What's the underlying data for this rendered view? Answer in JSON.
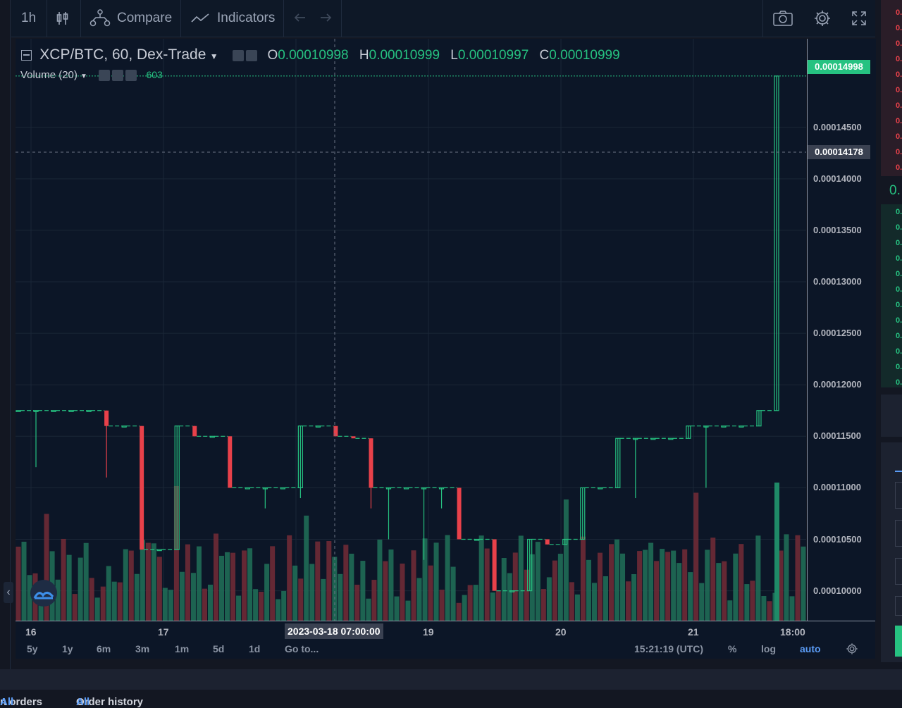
{
  "toolbar": {
    "interval": "1h",
    "compare_label": "Compare",
    "indicators_label": "Indicators"
  },
  "symbol": {
    "title": "XCP/BTC, 60, Dex-Trade",
    "open_label": "O",
    "open": "0.00010998",
    "high_label": "H",
    "high": "0.00010999",
    "low_label": "L",
    "low": "0.00010997",
    "close_label": "C",
    "close": "0.00010999"
  },
  "volume": {
    "label": "Volume (20)",
    "value": "603"
  },
  "price_scale": {
    "ticks": [
      "0.00014500",
      "0.00014000",
      "0.00013500",
      "0.00013000",
      "0.00012500",
      "0.00012000",
      "0.00011500",
      "0.00011000",
      "0.00010500",
      "0.00010000"
    ],
    "last_price_tag": "0.00014998",
    "crosshair_tag": "0.00014178"
  },
  "time_scale": {
    "ticks": [
      "16",
      "17",
      "19",
      "20",
      "21",
      "18:00"
    ],
    "crosshair_tag": "2023-03-18 07:00:00"
  },
  "ranges": [
    "5y",
    "1y",
    "6m",
    "3m",
    "1m",
    "5d",
    "1d"
  ],
  "goto_label": "Go to...",
  "clock": "15:21:19 (UTC)",
  "scale_options": {
    "percent": "%",
    "log": "log",
    "auto": "auto"
  },
  "footer": {
    "open_orders_text": "n orders",
    "open_orders_link": "All",
    "order_history_text": "Order history",
    "order_history_link": "All"
  },
  "right_panel": {
    "orderbook_cell": "0.",
    "mid_price": "0."
  },
  "colors": {
    "up": "#26c281",
    "down": "#e8414a",
    "bg": "#0c1627",
    "accent": "#5b9cf6"
  },
  "chart_data": {
    "type": "candlestick",
    "symbol": "XCP/BTC",
    "interval": "60",
    "exchange": "Dex-Trade",
    "ylim": [
      9.71e-05,
      0.0001536
    ],
    "price_ticks": [
      0.000145,
      0.00014,
      0.000135,
      0.00013,
      0.000125,
      0.00012,
      0.000115,
      0.00011,
      0.000105,
      0.0001
    ],
    "candles": [
      {
        "o": 0.0001175,
        "h": 0.0001175,
        "l": 0.0001175,
        "c": 0.0001175
      },
      {
        "o": 0.0001175,
        "h": 0.0001175,
        "l": 0.000112,
        "c": 0.0001175
      },
      {
        "o": 0.0001175,
        "h": 0.0001175,
        "l": 0.0001175,
        "c": 0.0001175
      },
      {
        "o": 0.0001175,
        "h": 0.0001175,
        "l": 0.0001175,
        "c": 0.0001175
      },
      {
        "o": 0.0001175,
        "h": 0.0001175,
        "l": 0.0001175,
        "c": 0.0001175
      },
      {
        "o": 0.0001175,
        "h": 0.0001175,
        "l": 0.000111,
        "c": 0.000116
      },
      {
        "o": 0.000116,
        "h": 0.000116,
        "l": 0.000116,
        "c": 0.000116
      },
      {
        "o": 0.000116,
        "h": 0.000116,
        "l": 0.000104,
        "c": 0.000104
      },
      {
        "o": 0.000104,
        "h": 0.000104,
        "l": 0.000104,
        "c": 0.000104
      },
      {
        "o": 0.000104,
        "h": 0.000116,
        "l": 0.000104,
        "c": 0.000116
      },
      {
        "o": 0.000116,
        "h": 0.000116,
        "l": 0.000115,
        "c": 0.000115
      },
      {
        "o": 0.000115,
        "h": 0.000115,
        "l": 0.000115,
        "c": 0.000115
      },
      {
        "o": 0.000115,
        "h": 0.000115,
        "l": 0.00011,
        "c": 0.00011
      },
      {
        "o": 0.00011,
        "h": 0.00011,
        "l": 0.00011,
        "c": 0.00011
      },
      {
        "o": 0.00011,
        "h": 0.00011,
        "l": 0.000108,
        "c": 0.00011
      },
      {
        "o": 0.00011,
        "h": 0.00011,
        "l": 0.00011,
        "c": 0.00011
      },
      {
        "o": 0.00011,
        "h": 0.000116,
        "l": 0.000109,
        "c": 0.000116
      },
      {
        "o": 0.000116,
        "h": 0.000116,
        "l": 0.000116,
        "c": 0.000116
      },
      {
        "o": 0.000116,
        "h": 0.000116,
        "l": 0.000115,
        "c": 0.000115
      },
      {
        "o": 0.000115,
        "h": 0.000115,
        "l": 0.000115,
        "c": 0.0001148
      },
      {
        "o": 0.0001148,
        "h": 0.0001148,
        "l": 0.000108,
        "c": 0.00011
      },
      {
        "o": 0.00011,
        "h": 0.00011,
        "l": 0.000105,
        "c": 0.00011
      },
      {
        "o": 0.00011,
        "h": 0.00011,
        "l": 0.00011,
        "c": 0.00011
      },
      {
        "o": 0.00011,
        "h": 0.00011,
        "l": 0.000103,
        "c": 0.00011
      },
      {
        "o": 0.00011,
        "h": 0.00011,
        "l": 0.000108,
        "c": 0.00011
      },
      {
        "o": 0.00011,
        "h": 0.00011,
        "l": 0.000105,
        "c": 0.000105
      },
      {
        "o": 0.000105,
        "h": 0.000105,
        "l": 0.000105,
        "c": 0.000105
      },
      {
        "o": 0.000105,
        "h": 0.000105,
        "l": 0.0001,
        "c": 0.0001
      },
      {
        "o": 0.0001,
        "h": 0.0001,
        "l": 0.0001,
        "c": 0.0001
      },
      {
        "o": 0.0001,
        "h": 0.000105,
        "l": 0.0001,
        "c": 0.000105
      },
      {
        "o": 0.000105,
        "h": 0.000105,
        "l": 0.0001045,
        "c": 0.0001045
      },
      {
        "o": 0.0001045,
        "h": 0.000105,
        "l": 0.0001045,
        "c": 0.000105
      },
      {
        "o": 0.000105,
        "h": 0.00011,
        "l": 0.000105,
        "c": 0.00011
      },
      {
        "o": 0.00011,
        "h": 0.00011,
        "l": 0.00011,
        "c": 0.00011
      },
      {
        "o": 0.00011,
        "h": 0.0001148,
        "l": 0.00011,
        "c": 0.0001148
      },
      {
        "o": 0.0001148,
        "h": 0.0001148,
        "l": 0.000109,
        "c": 0.0001148
      },
      {
        "o": 0.0001148,
        "h": 0.0001148,
        "l": 0.0001148,
        "c": 0.0001148
      },
      {
        "o": 0.0001148,
        "h": 0.0001148,
        "l": 0.0001148,
        "c": 0.0001148
      },
      {
        "o": 0.0001148,
        "h": 0.000116,
        "l": 0.0001148,
        "c": 0.000116
      },
      {
        "o": 0.000116,
        "h": 0.000116,
        "l": 0.00011,
        "c": 0.000116
      },
      {
        "o": 0.000116,
        "h": 0.000116,
        "l": 0.000116,
        "c": 0.000116
      },
      {
        "o": 0.000116,
        "h": 0.000116,
        "l": 0.000116,
        "c": 0.000116
      },
      {
        "o": 0.000116,
        "h": 0.0001175,
        "l": 0.000116,
        "c": 0.0001175
      },
      {
        "o": 0.0001175,
        "h": 0.00014998,
        "l": 0.0001175,
        "c": 0.00014998
      }
    ],
    "volume_series": {
      "name": "Volume (20)",
      "last": 603
    }
  }
}
